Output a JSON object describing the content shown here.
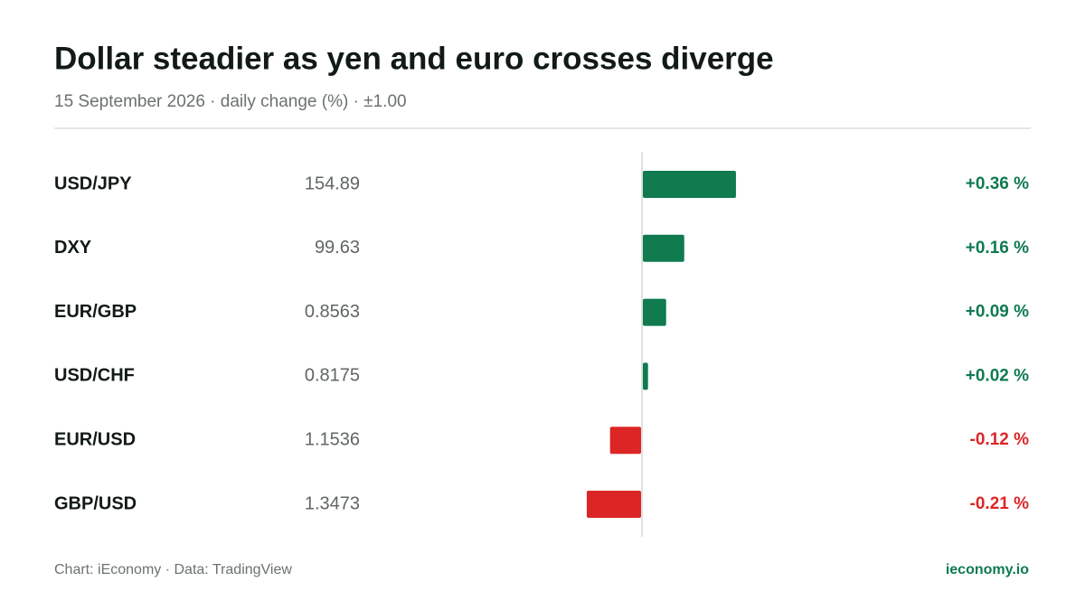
{
  "chart_data": {
    "type": "bar",
    "title": "Dollar steadier as yen and euro crosses diverge",
    "subtitle": "15 September 2026 · daily change (%) · ±1.00",
    "categories": [
      "USD/JPY",
      "DXY",
      "EUR/GBP",
      "USD/CHF",
      "EUR/USD",
      "GBP/USD"
    ],
    "rates": [
      154.89,
      99.63,
      0.8563,
      0.8175,
      1.1536,
      1.3473
    ],
    "values": [
      0.36,
      0.16,
      0.09,
      0.02,
      -0.12,
      -0.21
    ],
    "value_labels": [
      "+0.36 %",
      "+0.16 %",
      "+0.09 %",
      "+0.02 %",
      "-0.12 %",
      "-0.21 %"
    ],
    "positive_color": "#0f7b4f",
    "negative_color": "#dc2626",
    "xlim": [
      -1,
      1
    ],
    "source": "Chart: iEconomy · Data: TradingView",
    "brand": "ieconomy.io"
  }
}
